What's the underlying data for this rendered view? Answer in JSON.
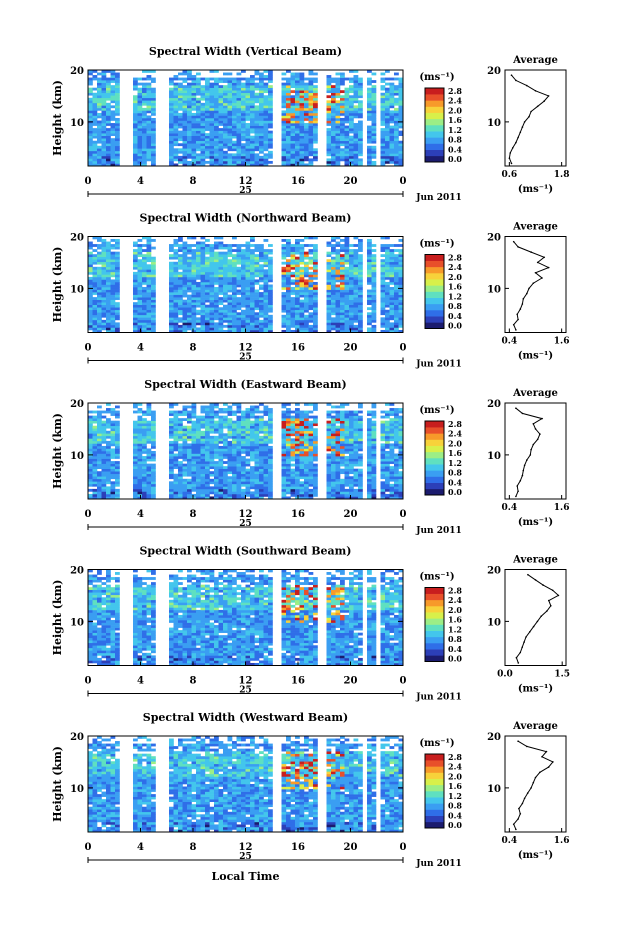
{
  "figure": {
    "date_label": "Jun 2011",
    "day_label": "25",
    "xlabel_bottom": "Local Time",
    "colorbar_unit": "(ms⁻¹)",
    "colorbar_ticks": [
      "0.0",
      "0.4",
      "0.8",
      "1.2",
      "1.6",
      "2.0",
      "2.4",
      "2.8"
    ],
    "colormap": [
      "#1b1b6e",
      "#2c3fb8",
      "#2f6ee8",
      "#3a9ef2",
      "#43c6ec",
      "#5fe0c0",
      "#9cee86",
      "#d8f04a",
      "#f7d23a",
      "#f79a2a",
      "#e8502a",
      "#c81e1e"
    ],
    "gap_color": "#ffffff"
  },
  "chart_data": [
    {
      "type": "heatmap",
      "title": "Spectral Width (Vertical Beam)",
      "ylabel": "Height (km)",
      "x_ticks": [
        "0",
        "4",
        "8",
        "12",
        "16",
        "20",
        "0"
      ],
      "xlim": [
        0,
        24
      ],
      "y_ticks": [
        "10",
        "20"
      ],
      "ylim": [
        1.5,
        20
      ],
      "clim": [
        0.0,
        2.8
      ],
      "data_gaps_hours": [
        [
          2.5,
          3.5
        ],
        [
          5.3,
          6.0
        ],
        [
          13.9,
          14.7
        ],
        [
          17.5,
          18.0
        ],
        [
          20.8,
          21.1
        ],
        [
          22.0,
          22.3
        ]
      ],
      "average_profile": {
        "title": "Average",
        "xlabel": "(ms⁻¹)",
        "x_ticks": [
          "0.6",
          "1.8"
        ],
        "xlim": [
          0.5,
          1.9
        ],
        "heights": [
          2,
          3,
          4,
          5,
          6,
          7,
          8,
          9,
          10,
          11,
          12,
          13,
          14,
          15,
          16,
          17,
          18,
          19
        ],
        "values": [
          0.65,
          0.6,
          0.62,
          0.68,
          0.75,
          0.8,
          0.85,
          0.9,
          0.95,
          1.05,
          1.1,
          1.25,
          1.4,
          1.5,
          1.2,
          1.0,
          0.75,
          0.65
        ]
      }
    },
    {
      "type": "heatmap",
      "title": "Spectral Width (Northward Beam)",
      "ylabel": "Height (km)",
      "x_ticks": [
        "0",
        "4",
        "8",
        "12",
        "16",
        "20",
        "0"
      ],
      "xlim": [
        0,
        24
      ],
      "y_ticks": [
        "10",
        "20"
      ],
      "ylim": [
        1.5,
        20
      ],
      "clim": [
        0.0,
        2.8
      ],
      "data_gaps_hours": [
        [
          2.5,
          3.5
        ],
        [
          5.3,
          6.0
        ],
        [
          13.9,
          14.7
        ],
        [
          17.5,
          18.0
        ],
        [
          20.8,
          21.1
        ],
        [
          22.0,
          22.3
        ]
      ],
      "average_profile": {
        "title": "Average",
        "xlabel": "(ms⁻¹)",
        "x_ticks": [
          "0.4",
          "1.6"
        ],
        "xlim": [
          0.3,
          1.7
        ],
        "heights": [
          2,
          3,
          4,
          5,
          6,
          7,
          8,
          9,
          10,
          11,
          12,
          13,
          14,
          15,
          16,
          17,
          18,
          19
        ],
        "values": [
          0.55,
          0.5,
          0.6,
          0.58,
          0.65,
          0.7,
          0.72,
          0.8,
          0.85,
          0.95,
          1.15,
          1.0,
          1.3,
          1.05,
          1.2,
          0.9,
          0.6,
          0.5
        ]
      }
    },
    {
      "type": "heatmap",
      "title": "Spectral Width (Eastward Beam)",
      "ylabel": "Height (km)",
      "x_ticks": [
        "0",
        "4",
        "8",
        "12",
        "16",
        "20",
        "0"
      ],
      "xlim": [
        0,
        24
      ],
      "y_ticks": [
        "10",
        "20"
      ],
      "ylim": [
        1.5,
        20
      ],
      "clim": [
        0.0,
        2.8
      ],
      "data_gaps_hours": [
        [
          2.5,
          3.5
        ],
        [
          5.3,
          6.0
        ],
        [
          13.9,
          14.7
        ],
        [
          17.5,
          18.0
        ],
        [
          20.8,
          21.1
        ],
        [
          22.0,
          22.3
        ]
      ],
      "average_profile": {
        "title": "Average",
        "xlabel": "(ms⁻¹)",
        "x_ticks": [
          "0.4",
          "1.6"
        ],
        "xlim": [
          0.3,
          1.7
        ],
        "heights": [
          2,
          3,
          4,
          5,
          6,
          7,
          8,
          9,
          10,
          11,
          12,
          13,
          14,
          15,
          16,
          17,
          18,
          19
        ],
        "values": [
          0.55,
          0.6,
          0.58,
          0.65,
          0.7,
          0.72,
          0.75,
          0.8,
          0.88,
          0.9,
          0.95,
          1.05,
          1.1,
          1.0,
          0.95,
          1.15,
          0.7,
          0.55
        ]
      }
    },
    {
      "type": "heatmap",
      "title": "Spectral Width (Southward Beam)",
      "ylabel": "Height (km)",
      "x_ticks": [
        "0",
        "4",
        "8",
        "12",
        "16",
        "20",
        "0"
      ],
      "xlim": [
        0,
        24
      ],
      "y_ticks": [
        "10",
        "20"
      ],
      "ylim": [
        1.5,
        20
      ],
      "clim": [
        0.0,
        2.8
      ],
      "data_gaps_hours": [
        [
          2.5,
          3.5
        ],
        [
          5.3,
          6.0
        ],
        [
          13.9,
          14.7
        ],
        [
          17.5,
          18.0
        ],
        [
          20.8,
          21.1
        ],
        [
          22.0,
          22.3
        ]
      ],
      "average_profile": {
        "title": "Average",
        "xlabel": "(ms⁻¹)",
        "x_ticks": [
          "0.0",
          "1.5"
        ],
        "xlim": [
          0.0,
          1.6
        ],
        "heights": [
          2,
          3,
          4,
          5,
          6,
          7,
          8,
          9,
          10,
          11,
          12,
          13,
          14,
          15,
          16,
          17,
          18,
          19
        ],
        "values": [
          0.35,
          0.3,
          0.4,
          0.45,
          0.5,
          0.55,
          0.65,
          0.75,
          0.85,
          0.95,
          1.1,
          1.2,
          1.15,
          1.4,
          1.25,
          1.0,
          0.8,
          0.6
        ]
      }
    },
    {
      "type": "heatmap",
      "title": "Spectral Width (Westward Beam)",
      "ylabel": "Height (km)",
      "x_ticks": [
        "0",
        "4",
        "8",
        "12",
        "16",
        "20",
        "0"
      ],
      "xlim": [
        0,
        24
      ],
      "y_ticks": [
        "10",
        "20"
      ],
      "ylim": [
        1.5,
        20
      ],
      "clim": [
        0.0,
        2.8
      ],
      "data_gaps_hours": [
        [
          2.5,
          3.5
        ],
        [
          5.3,
          6.0
        ],
        [
          13.9,
          14.7
        ],
        [
          17.5,
          18.0
        ],
        [
          20.8,
          21.1
        ],
        [
          22.0,
          22.3
        ]
      ],
      "average_profile": {
        "title": "Average",
        "xlabel": "(ms⁻¹)",
        "x_ticks": [
          "0.4",
          "1.6"
        ],
        "xlim": [
          0.3,
          1.7
        ],
        "heights": [
          2,
          3,
          4,
          5,
          6,
          7,
          8,
          9,
          10,
          11,
          12,
          13,
          14,
          15,
          16,
          17,
          18,
          19
        ],
        "values": [
          0.55,
          0.5,
          0.6,
          0.65,
          0.62,
          0.7,
          0.75,
          0.82,
          0.9,
          0.95,
          1.0,
          1.1,
          1.3,
          1.4,
          1.15,
          1.25,
          0.8,
          0.6
        ]
      }
    }
  ]
}
